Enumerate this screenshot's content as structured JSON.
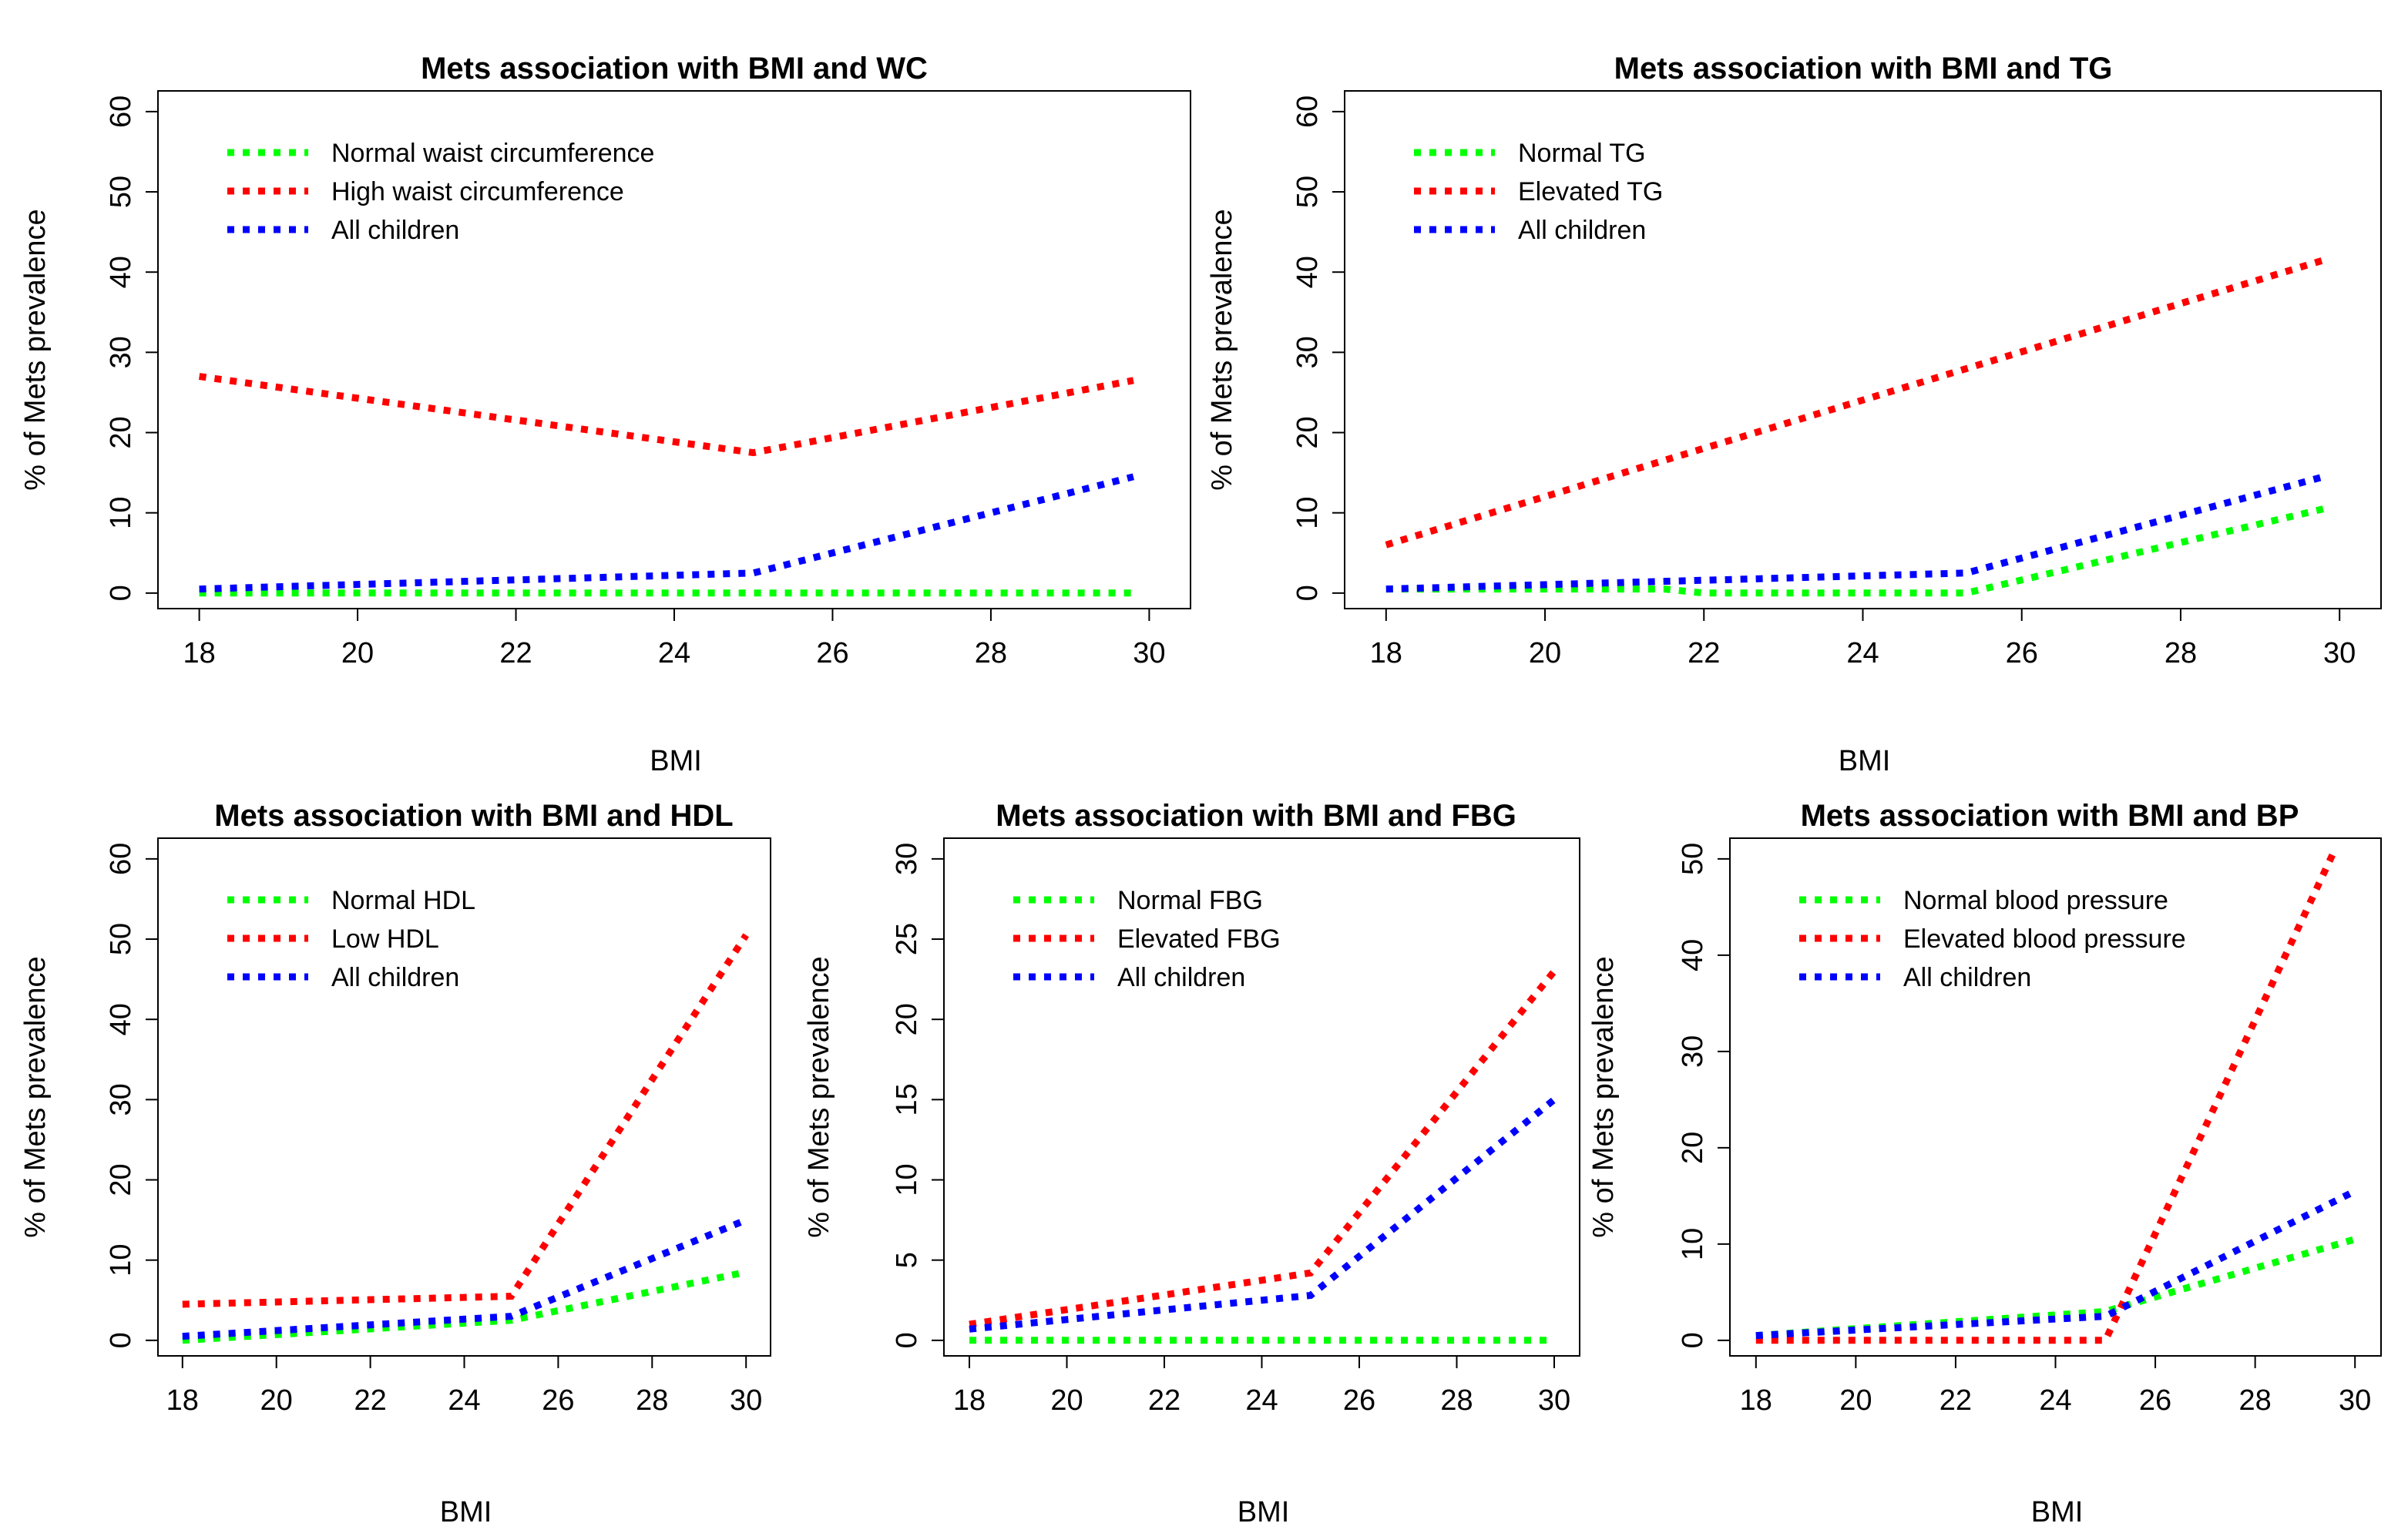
{
  "chart_data": [
    {
      "type": "line",
      "title": "Mets association with BMI and WC",
      "xlabel": "BMI",
      "ylabel": "% of Mets prevalence",
      "xlim": [
        18,
        30
      ],
      "ylim": [
        0,
        60
      ],
      "xticks": [
        "18",
        "20",
        "22",
        "24",
        "26",
        "28",
        "30"
      ],
      "yticks": [
        "0",
        "10",
        "20",
        "30",
        "40",
        "50",
        "60"
      ],
      "series": [
        {
          "name": "Normal waist circumference",
          "color": "#00ff00",
          "x": [
            18,
            25,
            29.8
          ],
          "y": [
            0,
            0,
            0
          ]
        },
        {
          "name": "High waist circumference",
          "color": "#ff0000",
          "x": [
            18,
            25,
            29.8
          ],
          "y": [
            27,
            17.5,
            26.5
          ]
        },
        {
          "name": "All children",
          "color": "#0000ff",
          "x": [
            18,
            25,
            29.8
          ],
          "y": [
            0.5,
            2.5,
            14.5
          ]
        }
      ]
    },
    {
      "type": "line",
      "title": "Mets association with BMI and TG",
      "xlabel": "BMI",
      "ylabel": "% of Mets prevalence",
      "xlim": [
        18,
        30
      ],
      "ylim": [
        0,
        60
      ],
      "xticks": [
        "18",
        "20",
        "22",
        "24",
        "26",
        "28",
        "30"
      ],
      "yticks": [
        "0",
        "10",
        "20",
        "30",
        "40",
        "50",
        "60"
      ],
      "series": [
        {
          "name": "Normal TG",
          "color": "#00ff00",
          "x": [
            18,
            21.5,
            22,
            25.3,
            29.8
          ],
          "y": [
            0.5,
            0.5,
            0,
            0,
            10.5
          ]
        },
        {
          "name": "Elevated TG",
          "color": "#ff0000",
          "x": [
            18,
            29.8
          ],
          "y": [
            6,
            41.5
          ]
        },
        {
          "name": "All children",
          "color": "#0000ff",
          "x": [
            18,
            25.3,
            29.8
          ],
          "y": [
            0.5,
            2.5,
            14.5
          ]
        }
      ]
    },
    {
      "type": "line",
      "title": "Mets association with BMI and HDL",
      "xlabel": "BMI",
      "ylabel": "% of Mets prevalence",
      "xlim": [
        18,
        30
      ],
      "ylim": [
        0,
        60
      ],
      "xticks": [
        "18",
        "20",
        "22",
        "24",
        "26",
        "28",
        "30"
      ],
      "yticks": [
        "0",
        "10",
        "20",
        "30",
        "40",
        "50",
        "60"
      ],
      "series": [
        {
          "name": "Normal HDL",
          "color": "#00ff00",
          "x": [
            18,
            25,
            30
          ],
          "y": [
            0,
            2.5,
            8.5
          ]
        },
        {
          "name": "Low HDL",
          "color": "#ff0000",
          "x": [
            18,
            25,
            30
          ],
          "y": [
            4.5,
            5.5,
            50.5
          ]
        },
        {
          "name": "All children",
          "color": "#0000ff",
          "x": [
            18,
            25,
            30
          ],
          "y": [
            0.5,
            3,
            15
          ]
        }
      ]
    },
    {
      "type": "line",
      "title": "Mets association with BMI and FBG",
      "xlabel": "BMI",
      "ylabel": "% of Mets prevalence",
      "xlim": [
        18,
        30
      ],
      "ylim": [
        0,
        30
      ],
      "xticks": [
        "18",
        "20",
        "22",
        "24",
        "26",
        "28",
        "30"
      ],
      "yticks": [
        "0",
        "5",
        "10",
        "15",
        "20",
        "25",
        "30"
      ],
      "series": [
        {
          "name": "Normal FBG",
          "color": "#00ff00",
          "x": [
            18,
            30
          ],
          "y": [
            0,
            0
          ]
        },
        {
          "name": "Elevated FBG",
          "color": "#ff0000",
          "x": [
            18,
            25,
            30
          ],
          "y": [
            1,
            4.2,
            23
          ]
        },
        {
          "name": "All children",
          "color": "#0000ff",
          "x": [
            18,
            25,
            30
          ],
          "y": [
            0.7,
            2.8,
            15
          ]
        }
      ]
    },
    {
      "type": "line",
      "title": "Mets association with BMI and BP",
      "xlabel": "BMI",
      "ylabel": "% of Mets prevalence",
      "xlim": [
        18,
        30
      ],
      "ylim": [
        0,
        50
      ],
      "xticks": [
        "18",
        "20",
        "22",
        "24",
        "26",
        "28",
        "30"
      ],
      "yticks": [
        "0",
        "10",
        "20",
        "30",
        "40",
        "50"
      ],
      "series": [
        {
          "name": "Normal blood pressure",
          "color": "#00ff00",
          "x": [
            18,
            25,
            30
          ],
          "y": [
            0.5,
            3,
            10.5
          ]
        },
        {
          "name": "Elevated blood pressure",
          "color": "#ff0000",
          "x": [
            18,
            25,
            29.6
          ],
          "y": [
            0,
            0,
            51
          ]
        },
        {
          "name": "All children",
          "color": "#0000ff",
          "x": [
            18,
            25,
            30
          ],
          "y": [
            0.5,
            2.5,
            15.5
          ]
        }
      ]
    }
  ]
}
